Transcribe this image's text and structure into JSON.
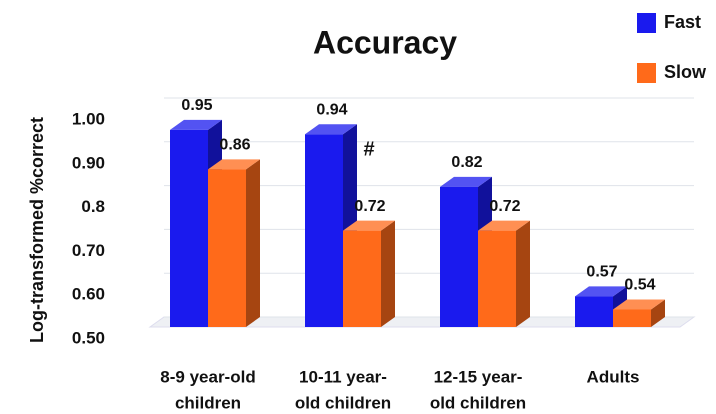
{
  "chart_data": {
    "type": "bar3d",
    "title": "Accuracy",
    "y_label": "Log-transformed %correct",
    "categories": [
      [
        "8-9 year-old",
        "children"
      ],
      [
        "10-11 year-",
        "old children"
      ],
      [
        "12-15 year-",
        "old children"
      ],
      [
        "Adults"
      ]
    ],
    "series": [
      {
        "name": "Fast",
        "color": "#1a1aee",
        "values": [
          0.95,
          0.94,
          0.82,
          0.57
        ]
      },
      {
        "name": "Slow",
        "color": "#ff6a1a",
        "values": [
          0.86,
          0.72,
          0.72,
          0.54
        ]
      }
    ],
    "ylim": [
      0.5,
      1.0
    ],
    "yticks": [
      {
        "value": 1.0,
        "label": "1.00"
      },
      {
        "value": 0.9,
        "label": "0.90"
      },
      0.8,
      {
        "value": 0.7,
        "label": "0.70"
      },
      {
        "value": 0.6,
        "label": "0.60"
      },
      {
        "value": 0.5,
        "label": "0.50"
      }
    ],
    "grid": true,
    "legend": "top-right",
    "annotations": [
      {
        "text": "#",
        "category": 1
      }
    ]
  }
}
